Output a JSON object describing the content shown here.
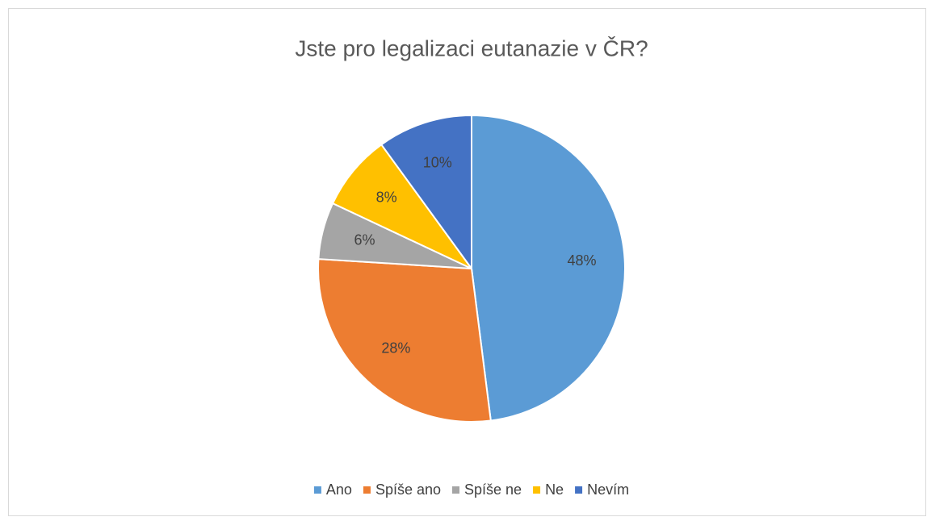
{
  "chart_data": {
    "type": "pie",
    "title": "Jste pro legalizaci eutanazie v ČR?",
    "categories": [
      "Ano",
      "Spíše ano",
      "Spíše ne",
      "Ne",
      "Nevím"
    ],
    "values": [
      48,
      28,
      6,
      8,
      10
    ],
    "value_labels": [
      "48%",
      "28%",
      "6%",
      "8%",
      "10%"
    ],
    "colors": [
      "#5b9bd5",
      "#ed7d31",
      "#a5a5a5",
      "#ffc000",
      "#4472c4"
    ],
    "legend": "bottom"
  }
}
